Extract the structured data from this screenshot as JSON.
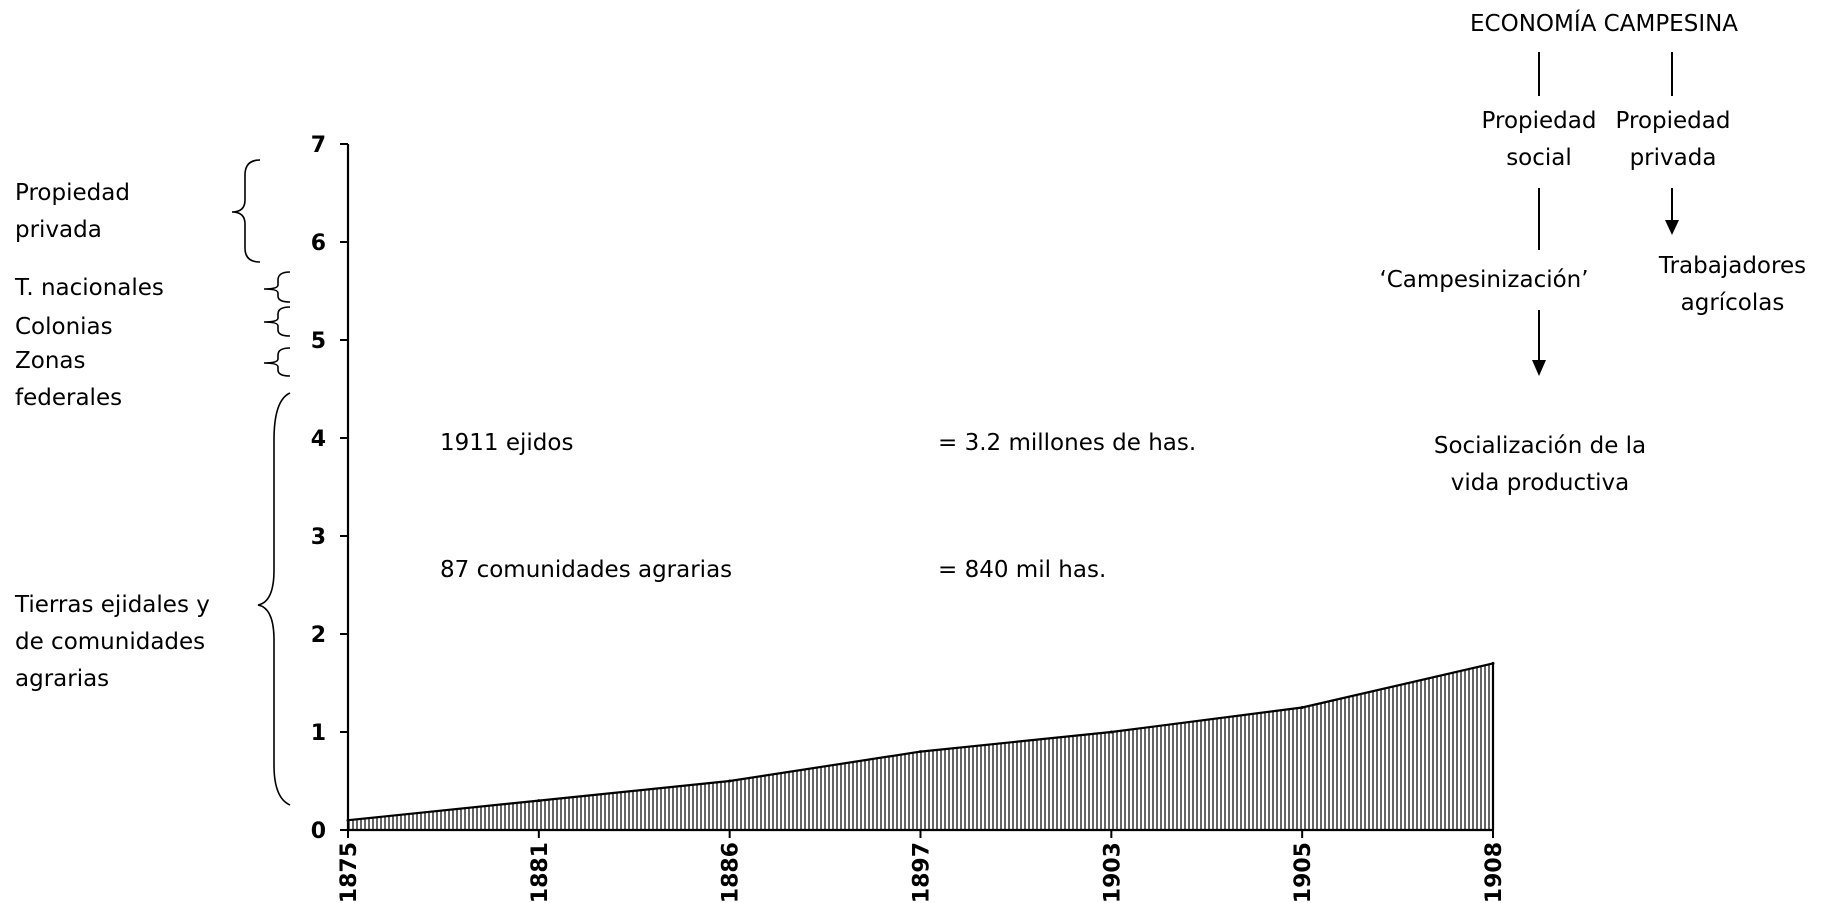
{
  "chart_data": {
    "type": "area",
    "x": [
      "1875",
      "1881",
      "1886",
      "1897",
      "1903",
      "1905",
      "1908"
    ],
    "values": [
      0.1,
      0.3,
      0.5,
      0.8,
      1.0,
      1.25,
      1.7
    ],
    "ylim": [
      0,
      7
    ],
    "yticks": [
      "0",
      "1",
      "2",
      "3",
      "4",
      "5",
      "6",
      "7"
    ],
    "fill": "vertical-hatch",
    "grid": false,
    "legend": "none",
    "title": "",
    "xlabel": "",
    "ylabel": ""
  },
  "brackets": {
    "propiedad_privada": "Propiedad privada",
    "t_nacionales": "T. nacionales",
    "colonias": "Colonias",
    "zonas_federales": "Zonas federales",
    "tierras_ejidales": "Tierras ejidales y de comunidades agrarias"
  },
  "stats": {
    "ejidos_label": "1911 ejidos",
    "ejidos_value": "= 3.2 millones de has.",
    "comunidades_label": "87 comunidades agrarias",
    "comunidades_value": "= 840 mil has."
  },
  "diagram": {
    "title": "ECONOMÍA CAMPESINA",
    "social": "Propiedad social",
    "privada": "Propiedad privada",
    "campesinizacion": "‘Campesinización’",
    "trabajadores": "Trabajadores agrícolas",
    "socializacion": "Socialización de la vida productiva"
  }
}
